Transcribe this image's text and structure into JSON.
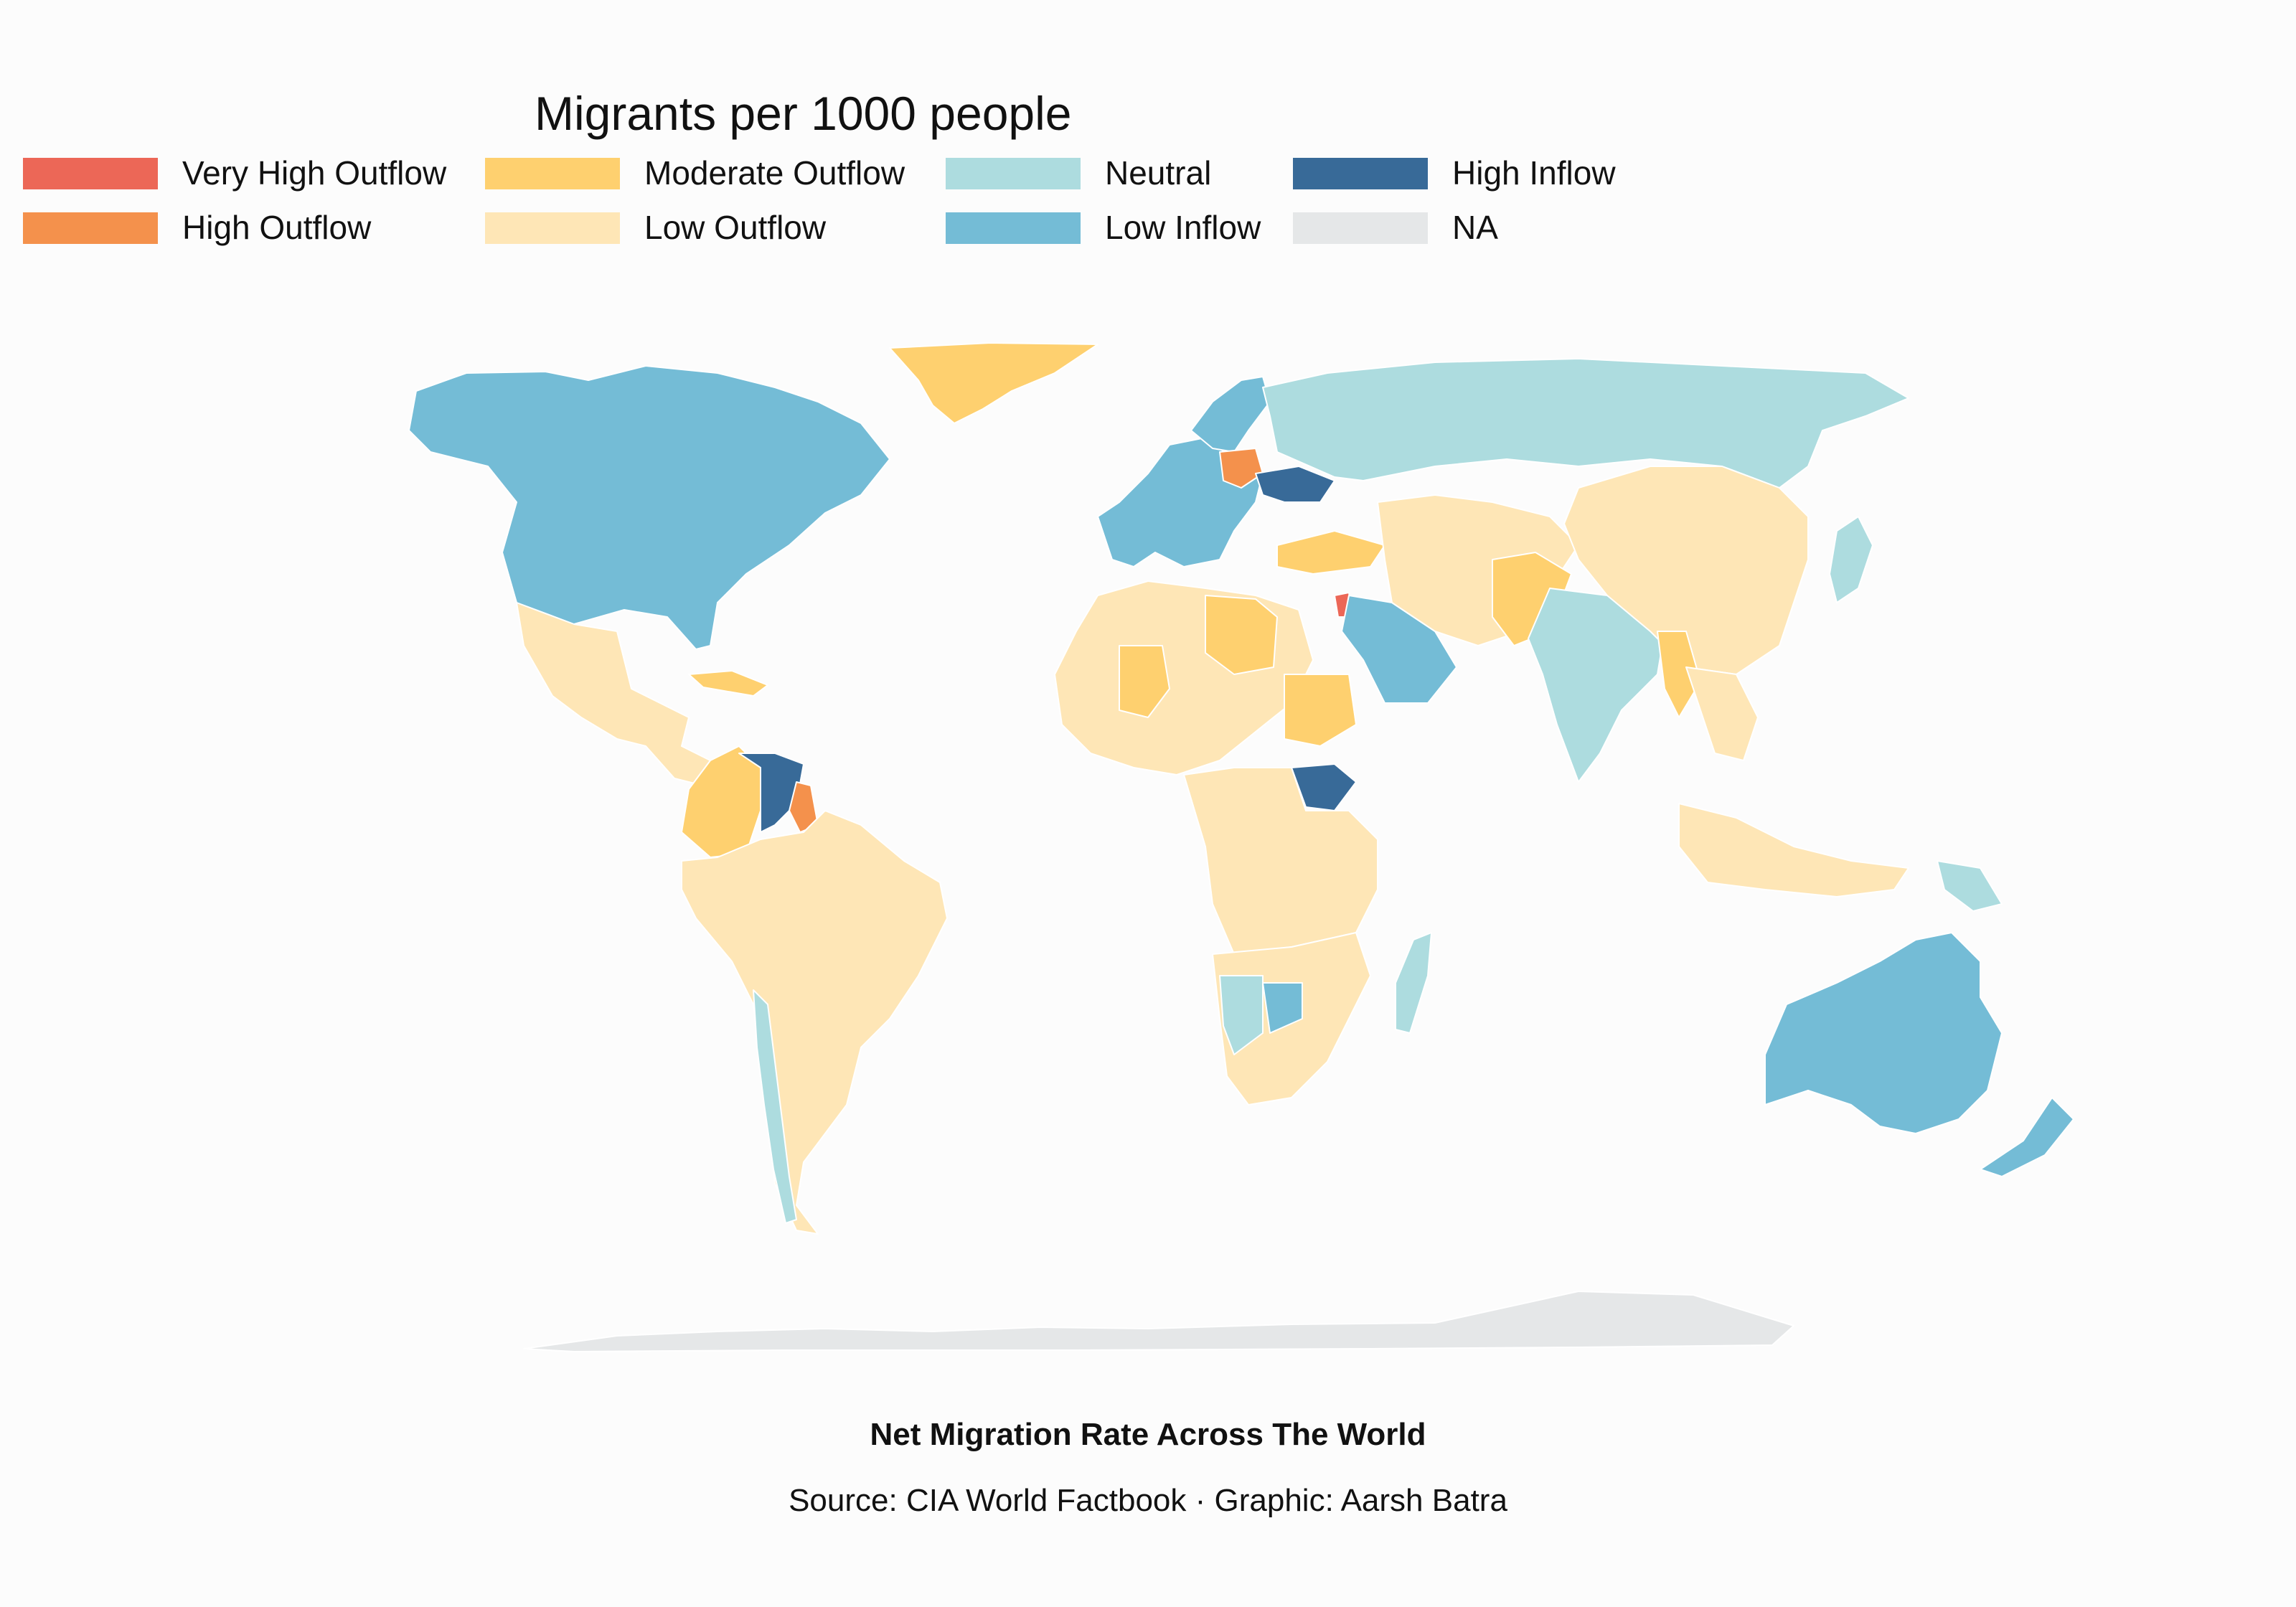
{
  "map": {
    "legend_title": "Migrants per 1000 people",
    "legend": [
      {
        "key": "very_high_outflow",
        "label": "Very High Outflow",
        "color": "#ec6757"
      },
      {
        "key": "high_outflow",
        "label": "High Outflow",
        "color": "#f4914c"
      },
      {
        "key": "moderate_outflow",
        "label": "Moderate Outflow",
        "color": "#fed06f"
      },
      {
        "key": "low_outflow",
        "label": "Low Outflow",
        "color": "#fee6b6"
      },
      {
        "key": "neutral",
        "label": "Neutral",
        "color": "#addcdf"
      },
      {
        "key": "low_inflow",
        "label": "Low Inflow",
        "color": "#74bcd6"
      },
      {
        "key": "high_inflow",
        "label": "High Inflow",
        "color": "#386a98"
      },
      {
        "key": "na",
        "label": "NA",
        "color": "#e5e7e8"
      }
    ],
    "regions": [
      {
        "name": "North America",
        "category": "low_inflow"
      },
      {
        "name": "Greenland",
        "category": "moderate_outflow"
      },
      {
        "name": "Mexico and Central America",
        "category": "low_outflow"
      },
      {
        "name": "Caribbean",
        "category": "moderate_outflow"
      },
      {
        "name": "Colombia",
        "category": "moderate_outflow"
      },
      {
        "name": "Venezuela",
        "category": "high_inflow"
      },
      {
        "name": "Guyana",
        "category": "high_outflow"
      },
      {
        "name": "South America",
        "category": "low_outflow"
      },
      {
        "name": "Chile",
        "category": "neutral"
      },
      {
        "name": "Western Europe",
        "category": "low_inflow"
      },
      {
        "name": "Scandinavia",
        "category": "low_inflow"
      },
      {
        "name": "Poland",
        "category": "high_outflow"
      },
      {
        "name": "Ukraine",
        "category": "high_inflow"
      },
      {
        "name": "Russia",
        "category": "neutral"
      },
      {
        "name": "North Africa",
        "category": "low_outflow"
      },
      {
        "name": "Libya",
        "category": "moderate_outflow"
      },
      {
        "name": "Mali",
        "category": "moderate_outflow"
      },
      {
        "name": "Sudan",
        "category": "moderate_outflow"
      },
      {
        "name": "South Sudan",
        "category": "high_inflow"
      },
      {
        "name": "Central Africa",
        "category": "low_outflow"
      },
      {
        "name": "Southern Africa",
        "category": "low_outflow"
      },
      {
        "name": "Namibia",
        "category": "neutral"
      },
      {
        "name": "Botswana",
        "category": "low_inflow"
      },
      {
        "name": "Madagascar",
        "category": "neutral"
      },
      {
        "name": "Syria",
        "category": "very_high_outflow"
      },
      {
        "name": "Turkey",
        "category": "moderate_outflow"
      },
      {
        "name": "Saudi Arabia",
        "category": "low_inflow"
      },
      {
        "name": "Iran and Central Asia",
        "category": "low_outflow"
      },
      {
        "name": "Afghanistan and Pakistan",
        "category": "moderate_outflow"
      },
      {
        "name": "India",
        "category": "neutral"
      },
      {
        "name": "China",
        "category": "low_outflow"
      },
      {
        "name": "Myanmar",
        "category": "moderate_outflow"
      },
      {
        "name": "Southeast Asia",
        "category": "low_outflow"
      },
      {
        "name": "Japan",
        "category": "neutral"
      },
      {
        "name": "Indonesia",
        "category": "low_outflow"
      },
      {
        "name": "Papua New Guinea",
        "category": "neutral"
      },
      {
        "name": "Australia",
        "category": "low_inflow"
      },
      {
        "name": "New Zealand",
        "category": "low_inflow"
      },
      {
        "name": "Antarctica",
        "category": "na"
      }
    ]
  },
  "caption": {
    "title": "Net Migration Rate Across The World",
    "source": "Source: CIA World Factbook · Graphic: Aarsh Batra"
  }
}
